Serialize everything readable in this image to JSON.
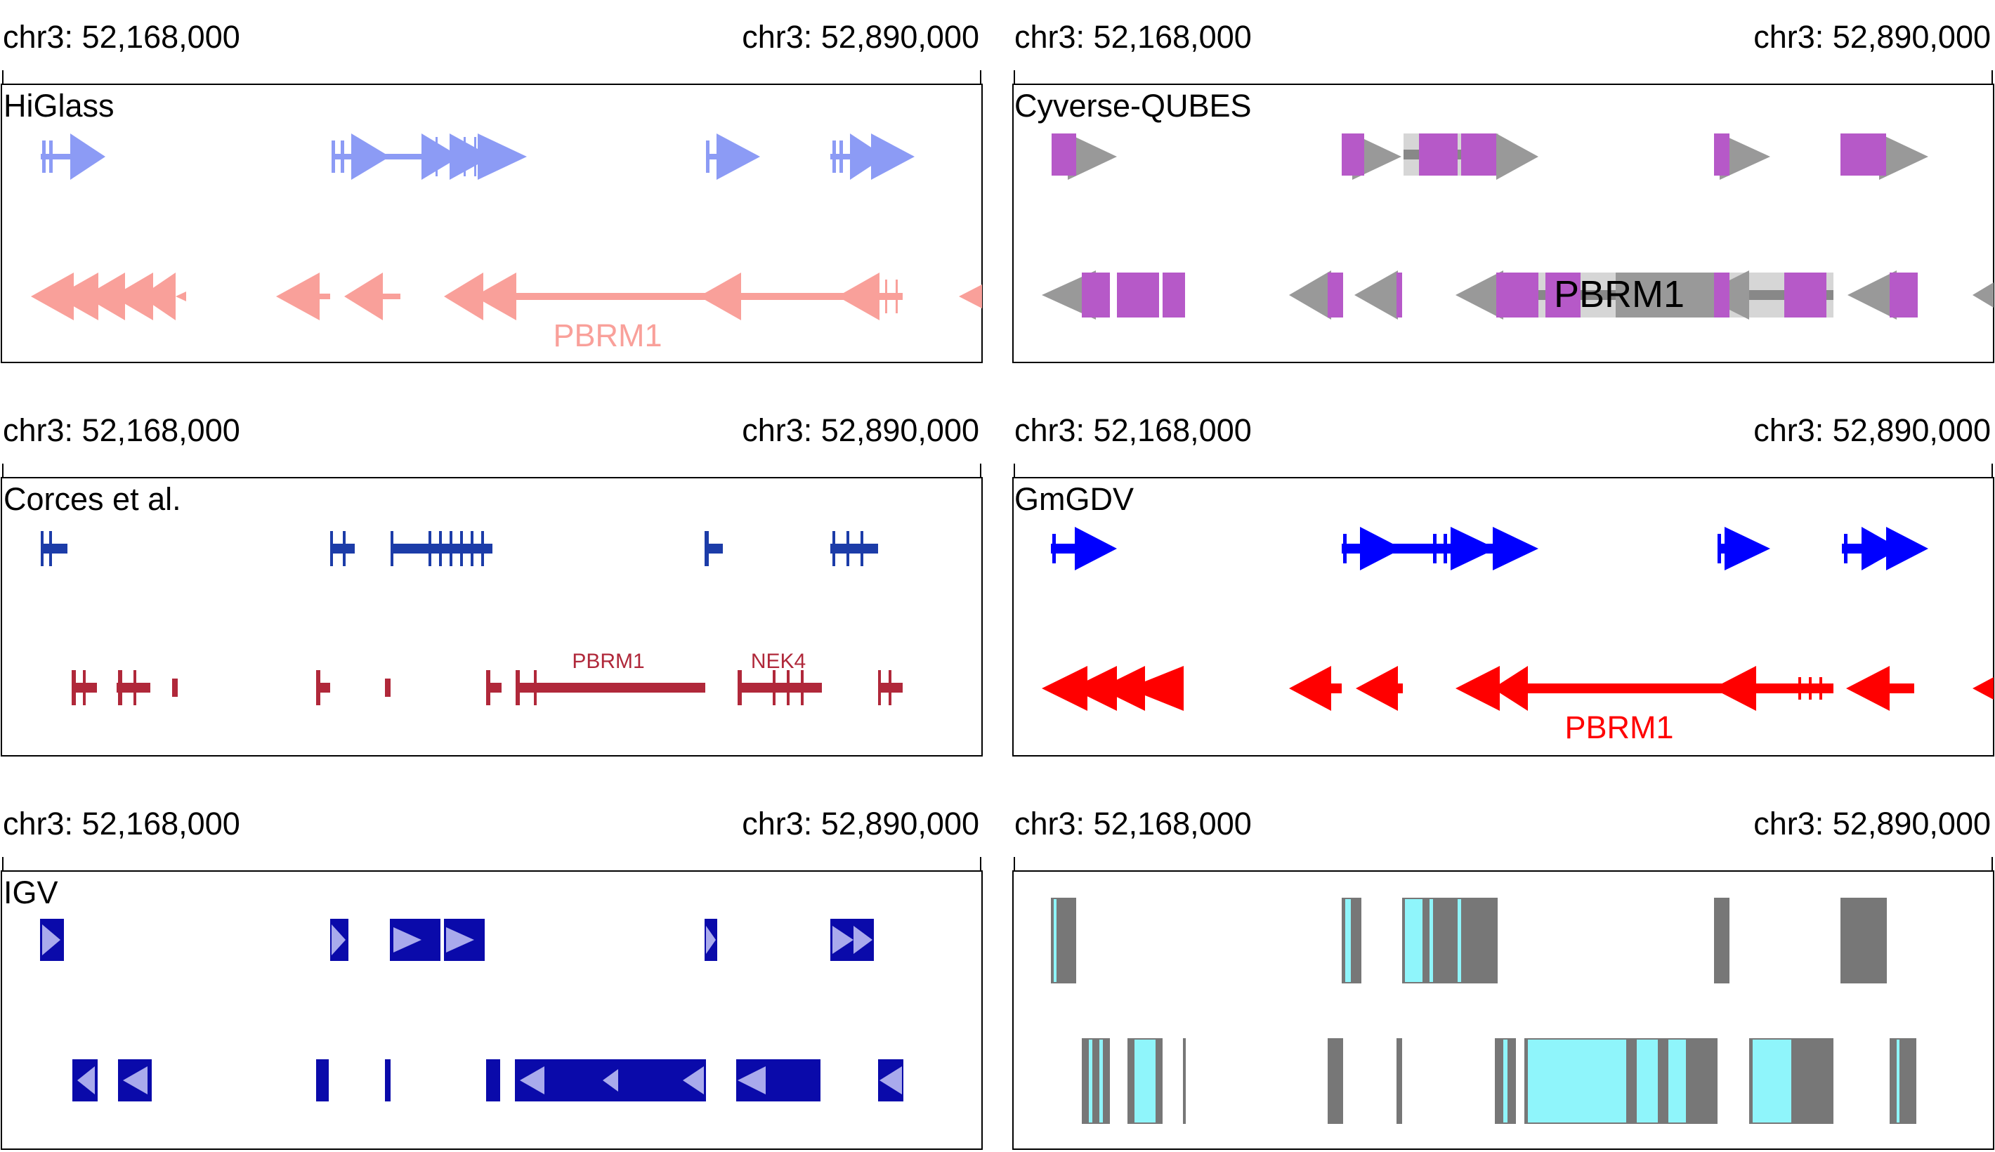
{
  "axis": {
    "left_label": "chr3: 52,168,000",
    "right_label": "chr3: 52,890,000"
  },
  "panels": [
    {
      "id": "higlass",
      "title": "HiGlass"
    },
    {
      "id": "qubes",
      "title": "Cyverse-QUBES"
    },
    {
      "id": "corces",
      "title": "Corces et al."
    },
    {
      "id": "gmgdv",
      "title": "GmGDV"
    },
    {
      "id": "igv",
      "title": "IGV"
    },
    {
      "id": "bars",
      "title": ""
    }
  ],
  "gene_labels": {
    "higlass": "PBRM1",
    "qubes": "PBRM1",
    "corces_1": "PBRM1",
    "corces_2": "NEK4",
    "gmgdv": "PBRM1"
  },
  "colors": {
    "higlass_plus": "#8c9bf5",
    "higlass_minus": "#f9a09a",
    "qubes_exon": "#b659c8",
    "qubes_arrow": "#999999",
    "corces_plus": "#1c3ca8",
    "corces_minus": "#b0283a",
    "gmgdv_plus": "#0000ff",
    "gmgdv_minus": "#ff0000",
    "igv": "#0a0aaa",
    "bars_gray": "#777777",
    "bars_cyan": "#8ff5fb"
  }
}
